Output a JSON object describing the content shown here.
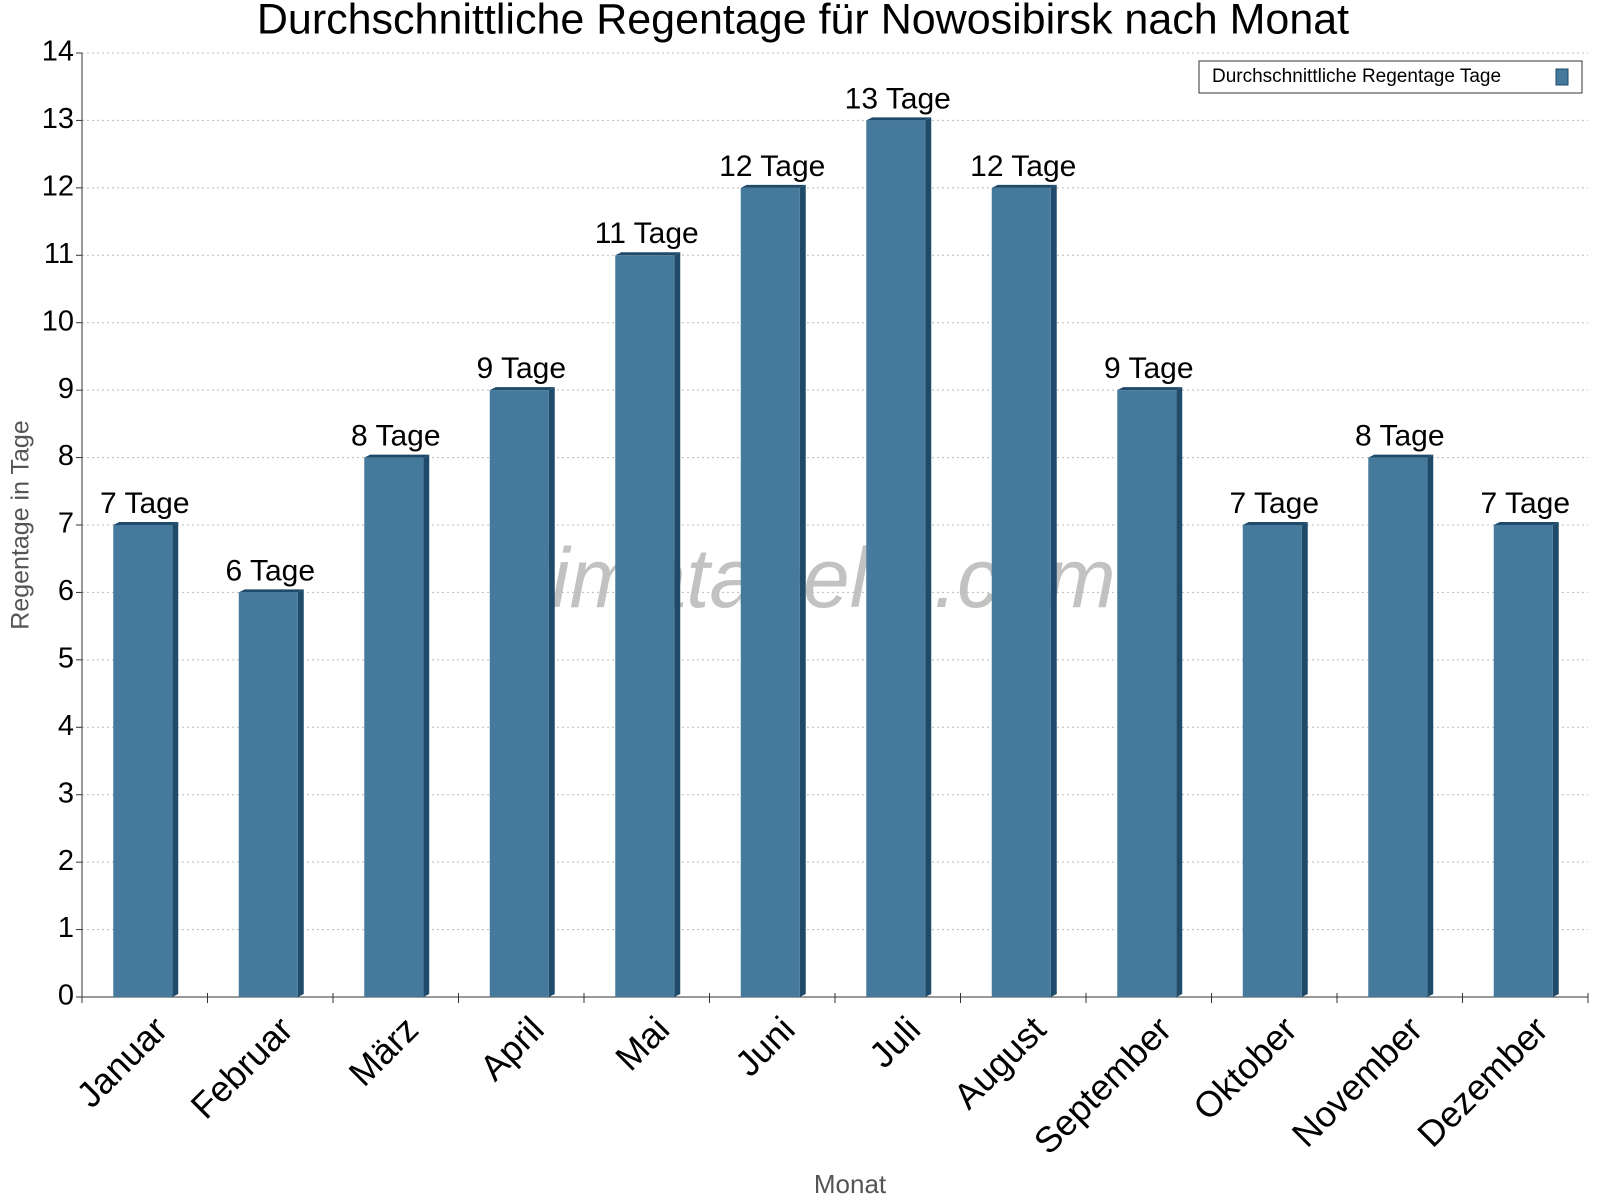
{
  "chart_data": {
    "type": "bar",
    "title": "Durchschnittliche Regentage für Nowosibirsk nach Monat",
    "x_label": "Monat",
    "y_label": "Regentage in Tage",
    "watermark": "klimatabelle.com",
    "categories": [
      "Januar",
      "Februar",
      "März",
      "April",
      "Mai",
      "Juni",
      "Juli",
      "August",
      "September",
      "Oktober",
      "November",
      "Dezember"
    ],
    "series": [
      {
        "name": "Durchschnittliche Regentage Tage",
        "color": "#467a9c",
        "values": [
          7,
          6,
          8,
          9,
          11,
          12,
          13,
          12,
          9,
          7,
          8,
          7
        ],
        "value_labels": [
          "7 Tage",
          "6 Tage",
          "8 Tage",
          "9 Tage",
          "11 Tage",
          "12 Tage",
          "13 Tage",
          "12 Tage",
          "9 Tage",
          "7 Tage",
          "8 Tage",
          "7 Tage"
        ]
      }
    ],
    "ylim": [
      0,
      14
    ],
    "yticks": [
      0,
      1,
      2,
      3,
      4,
      5,
      6,
      7,
      8,
      9,
      10,
      11,
      12,
      13,
      14
    ],
    "grid": true,
    "legend": "top-right"
  }
}
